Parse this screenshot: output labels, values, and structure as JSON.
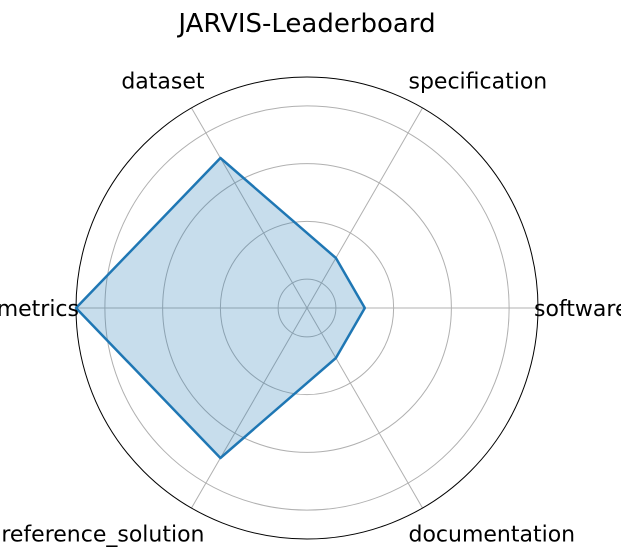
{
  "chart_data": {
    "type": "radar",
    "title": "JARVIS-Leaderboard",
    "axes": [
      "software",
      "specification",
      "dataset",
      "metrics",
      "reference_solution",
      "documentation"
    ],
    "series": [
      {
        "values": [
          1,
          1,
          3,
          4,
          3,
          1
        ],
        "line_color": "#1f77b4",
        "fill_color": "#1f77b4",
        "fill_opacity": 0.25
      }
    ],
    "rlim": [
      0,
      4
    ],
    "rgrid": [
      0.5,
      1.5,
      2.5,
      3.5
    ],
    "grid": true,
    "radial_tick_labels": []
  }
}
